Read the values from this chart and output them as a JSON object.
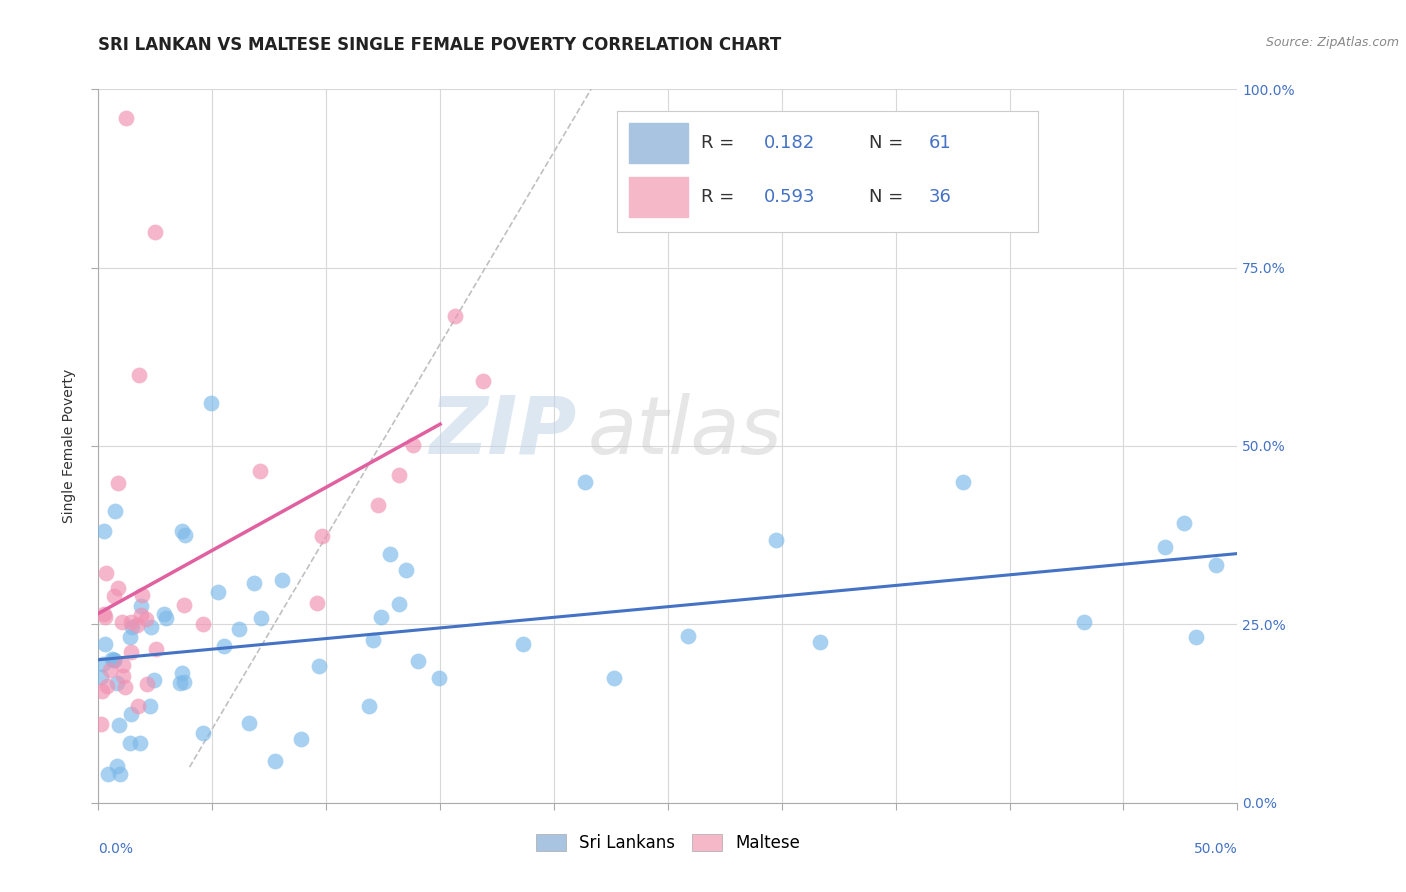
{
  "title": "SRI LANKAN VS MALTESE SINGLE FEMALE POVERTY CORRELATION CHART",
  "source": "Source: ZipAtlas.com",
  "ylabel": "Single Female Poverty",
  "ytick_vals": [
    0.0,
    0.25,
    0.5,
    0.75,
    1.0
  ],
  "ytick_labels": [
    "0.0%",
    "25.0%",
    "50.0%",
    "75.0%",
    "100.0%"
  ],
  "xlim": [
    0.0,
    0.5
  ],
  "ylim": [
    0.0,
    1.0
  ],
  "sri_lankan_color": "#7ab8e8",
  "maltese_color": "#f090b0",
  "sri_lankan_line_color": "#4472c4",
  "maltese_line_color": "#e060a0",
  "gray_dash_color": "#c0c0c0",
  "background_color": "#ffffff",
  "grid_color": "#d8d8d8",
  "legend_box_color_sl": "#a8c4e0",
  "legend_box_color_ma": "#f4b8c8",
  "r_sl": 0.182,
  "n_sl": 61,
  "r_ma": 0.593,
  "n_ma": 36,
  "watermark_zip_color": "#c0d4e8",
  "watermark_atlas_color": "#c8c8c8",
  "title_fontsize": 12,
  "axis_label_fontsize": 10,
  "tick_label_fontsize": 10,
  "legend_fontsize": 13,
  "source_fontsize": 9
}
